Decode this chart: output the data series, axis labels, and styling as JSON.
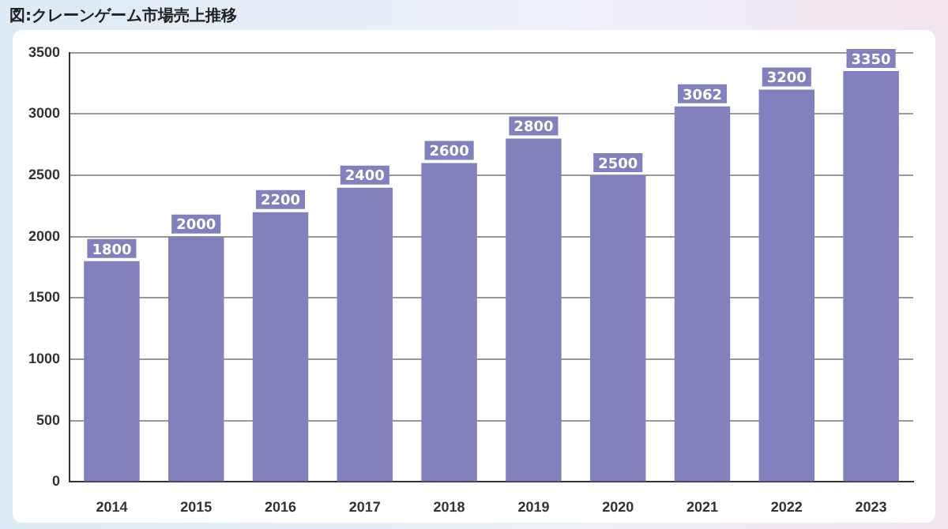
{
  "chart_data": {
    "type": "bar",
    "title": "図:クレーンゲーム市場売上推移",
    "categories": [
      "2014",
      "2015",
      "2016",
      "2017",
      "2018",
      "2019",
      "2020",
      "2021",
      "2022",
      "2023"
    ],
    "values": [
      1800,
      2000,
      2200,
      2400,
      2600,
      2800,
      2500,
      3062,
      3200,
      3350
    ],
    "color": "#8381bd",
    "ylim": [
      0,
      3500
    ],
    "yticks": [
      0,
      500,
      1000,
      1500,
      2000,
      2500,
      3000,
      3500
    ],
    "grid": "y",
    "data_labels": true,
    "legend": false
  }
}
